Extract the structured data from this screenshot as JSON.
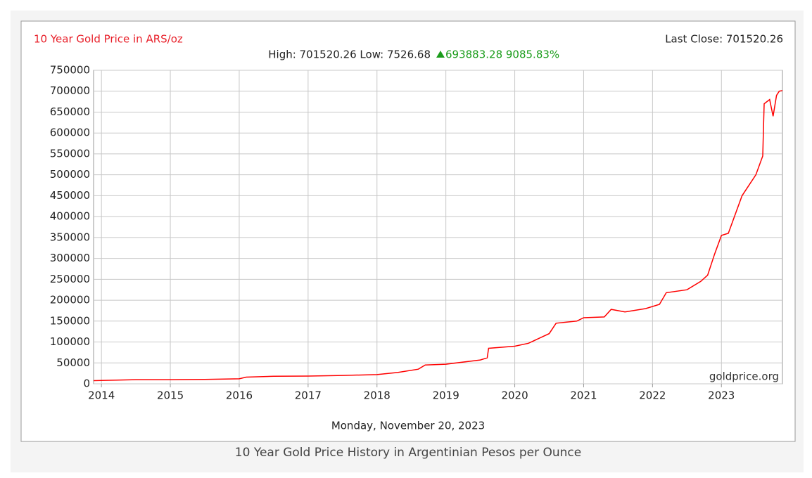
{
  "chart_data": {
    "type": "line",
    "title": "10 Year Gold Price in ARS/oz",
    "last_close": "Last Close: 701520.26",
    "stats": "High: 701520.26 Low: 7526.68",
    "change": "693883.28 9085.83%",
    "date": "Monday, November 20, 2023",
    "watermark": "goldprice.org",
    "caption": "10 Year Gold Price History in Argentinian Pesos per Ounce",
    "color": "#ff0000",
    "grid": true,
    "x": [
      2013.886,
      2014.5,
      2015.0,
      2015.5,
      2016.0,
      2016.1,
      2016.5,
      2017.0,
      2017.5,
      2018.0,
      2018.3,
      2018.6,
      2018.7,
      2019.0,
      2019.5,
      2019.6,
      2019.62,
      2020.0,
      2020.2,
      2020.5,
      2020.6,
      2020.9,
      2021.0,
      2021.3,
      2021.4,
      2021.6,
      2021.9,
      2022.1,
      2022.2,
      2022.5,
      2022.7,
      2022.8,
      2022.9,
      2023.0,
      2023.1,
      2023.3,
      2023.5,
      2023.6,
      2023.62,
      2023.7,
      2023.75,
      2023.8,
      2023.84,
      2023.886
    ],
    "values": [
      7526.68,
      10000,
      10000,
      10500,
      12000,
      16000,
      18000,
      18500,
      20000,
      22000,
      27000,
      35000,
      45000,
      47000,
      57000,
      62000,
      85000,
      90000,
      97000,
      120000,
      145000,
      150000,
      158000,
      160000,
      178000,
      172000,
      180000,
      190000,
      218000,
      225000,
      245000,
      260000,
      310000,
      355000,
      360000,
      450000,
      500000,
      545000,
      670000,
      680000,
      640000,
      690000,
      700000,
      701520.26
    ],
    "xlim": [
      2013.886,
      2023.886
    ],
    "xticks": [
      2014,
      2015,
      2016,
      2017,
      2018,
      2019,
      2020,
      2021,
      2022,
      2023
    ],
    "ylim": [
      0,
      750000
    ],
    "yticks": [
      0,
      50000,
      100000,
      150000,
      200000,
      250000,
      300000,
      350000,
      400000,
      450000,
      500000,
      550000,
      600000,
      650000,
      700000,
      750000
    ]
  }
}
